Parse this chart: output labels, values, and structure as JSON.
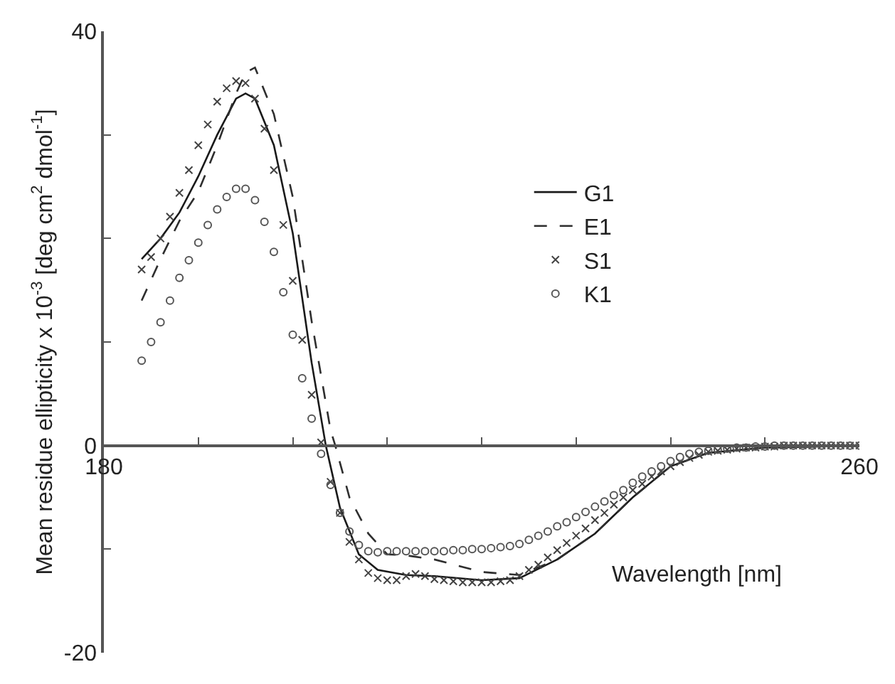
{
  "chart_data": {
    "type": "line",
    "xlabel": "Wavelength [nm]",
    "ylabel": "Mean residue ellipticity x 10$^{-3}$ [deg cm$^{2}$ dmol$^{-1}$]",
    "xlim": [
      180,
      260
    ],
    "ylim": [
      -20,
      40
    ],
    "xticks": [
      180,
      {
        "value": 190,
        "label": null
      },
      {
        "value": 200,
        "label": null
      },
      {
        "value": 210,
        "label": null
      },
      {
        "value": 220,
        "label": null
      },
      {
        "value": 230,
        "label": null
      },
      {
        "value": 240,
        "label": null
      },
      {
        "value": 250,
        "label": null
      },
      260
    ],
    "yticks": [
      -20,
      {
        "value": -10,
        "label": null
      },
      0,
      {
        "value": 10,
        "label": null
      },
      {
        "value": 20,
        "label": null
      },
      {
        "value": 30,
        "label": null
      },
      40
    ],
    "legend": "top right",
    "series": [
      {
        "name": "G1",
        "line_style": "solid",
        "marker": "none",
        "color": "#1a1a1a",
        "x": [
          184,
          186,
          188,
          190,
          192,
          194,
          195,
          196,
          198,
          200,
          202,
          203.5,
          205,
          207,
          209,
          212,
          215,
          220,
          224,
          228,
          232,
          236,
          240,
          244,
          250,
          260
        ],
        "values": [
          18,
          20,
          22.5,
          26,
          30,
          33.5,
          34,
          33.5,
          29,
          20.5,
          8,
          0,
          -6,
          -10.5,
          -12,
          -12.5,
          -12.6,
          -13,
          -12.8,
          -11,
          -8.5,
          -5,
          -2,
          -0.7,
          -0.2,
          0
        ]
      },
      {
        "name": "E1",
        "line_style": "dashed",
        "marker": "none",
        "color": "#2e2e2e",
        "x": [
          184,
          186,
          188,
          190,
          192,
          194,
          195,
          196,
          198,
          200,
          202,
          204,
          204.5,
          206,
          208,
          210,
          212,
          215,
          220,
          224,
          228,
          232,
          236,
          240,
          244,
          250,
          260
        ],
        "values": [
          14,
          18,
          21.7,
          24.5,
          29,
          34,
          36,
          36.5,
          32,
          24,
          12,
          1.5,
          0,
          -5,
          -8.5,
          -10.5,
          -10.6,
          -11,
          -12.2,
          -12.5,
          -11,
          -8.5,
          -5,
          -2,
          -0.7,
          -0.2,
          0
        ]
      },
      {
        "name": "S1",
        "type": "scatter",
        "marker": "cross",
        "color": "#424242",
        "x": [
          184,
          185,
          186,
          187,
          188,
          189,
          190,
          191,
          192,
          193,
          194,
          195,
          196,
          197,
          198,
          199,
          200,
          201,
          202,
          203,
          204,
          205,
          206,
          207,
          208,
          209,
          210,
          211,
          212,
          213,
          214,
          215,
          216,
          217,
          218,
          219,
          220,
          221,
          222,
          223,
          224,
          225,
          226,
          227,
          228,
          229,
          230,
          231,
          232,
          233,
          234,
          235,
          236,
          237,
          238,
          239,
          240,
          241,
          242,
          243,
          244,
          245,
          246,
          247,
          248,
          249,
          250,
          251,
          252,
          253,
          254,
          255,
          256,
          257,
          258,
          259,
          260
        ],
        "values": [
          17,
          18.2,
          20,
          22.1,
          24.4,
          26.6,
          29,
          31,
          33.2,
          34.5,
          35.2,
          35,
          33.5,
          30.6,
          26.6,
          21.3,
          15.9,
          10.2,
          4.9,
          0.3,
          -3.5,
          -6.5,
          -9.3,
          -11,
          -12.3,
          -12.8,
          -13,
          -13,
          -12.6,
          -12.4,
          -12.6,
          -12.9,
          -13,
          -13.1,
          -13.2,
          -13.2,
          -13.2,
          -13.2,
          -13.1,
          -13,
          -12.6,
          -12,
          -11.5,
          -10.8,
          -10.1,
          -9.4,
          -8.7,
          -8,
          -7.2,
          -6.5,
          -5.7,
          -5,
          -4.3,
          -3.7,
          -3,
          -2.5,
          -2,
          -1.6,
          -1.2,
          -0.9,
          -0.6,
          -0.5,
          -0.4,
          -0.3,
          -0.2,
          -0.2,
          -0.1,
          -0.1,
          0,
          0,
          0,
          0,
          0,
          0,
          0,
          0,
          0
        ]
      },
      {
        "name": "K1",
        "type": "scatter",
        "marker": "circle",
        "color": "#565656",
        "x": [
          184,
          185,
          186,
          187,
          188,
          189,
          190,
          191,
          192,
          193,
          194,
          195,
          196,
          197,
          198,
          199,
          200,
          201,
          202,
          203,
          204,
          205,
          206,
          207,
          208,
          209,
          210,
          211,
          212,
          213,
          214,
          215,
          216,
          217,
          218,
          219,
          220,
          221,
          222,
          223,
          224,
          225,
          226,
          227,
          228,
          229,
          230,
          231,
          232,
          233,
          234,
          235,
          236,
          237,
          238,
          239,
          240,
          241,
          242,
          243,
          244,
          245,
          246,
          247,
          248,
          249,
          250,
          251,
          252,
          253,
          254,
          255,
          256,
          257,
          258,
          259,
          260
        ],
        "values": [
          8.2,
          10,
          11.9,
          14,
          16.2,
          17.9,
          19.6,
          21.3,
          22.8,
          24,
          24.8,
          24.8,
          23.7,
          21.6,
          18.7,
          14.8,
          10.7,
          6.5,
          2.6,
          -0.8,
          -3.8,
          -6.5,
          -8.3,
          -9.6,
          -10.2,
          -10.3,
          -10.2,
          -10.2,
          -10.2,
          -10.2,
          -10.2,
          -10.2,
          -10.2,
          -10.1,
          -10.1,
          -10,
          -10,
          -9.9,
          -9.8,
          -9.7,
          -9.5,
          -9.1,
          -8.7,
          -8.3,
          -7.8,
          -7.4,
          -6.9,
          -6.4,
          -5.9,
          -5.4,
          -4.8,
          -4.3,
          -3.6,
          -3,
          -2.5,
          -2,
          -1.5,
          -1.1,
          -0.8,
          -0.6,
          -0.5,
          -0.4,
          -0.3,
          -0.2,
          -0.2,
          -0.1,
          -0.1,
          0,
          0,
          0,
          0,
          0,
          0,
          0,
          0,
          0,
          0
        ]
      }
    ]
  }
}
